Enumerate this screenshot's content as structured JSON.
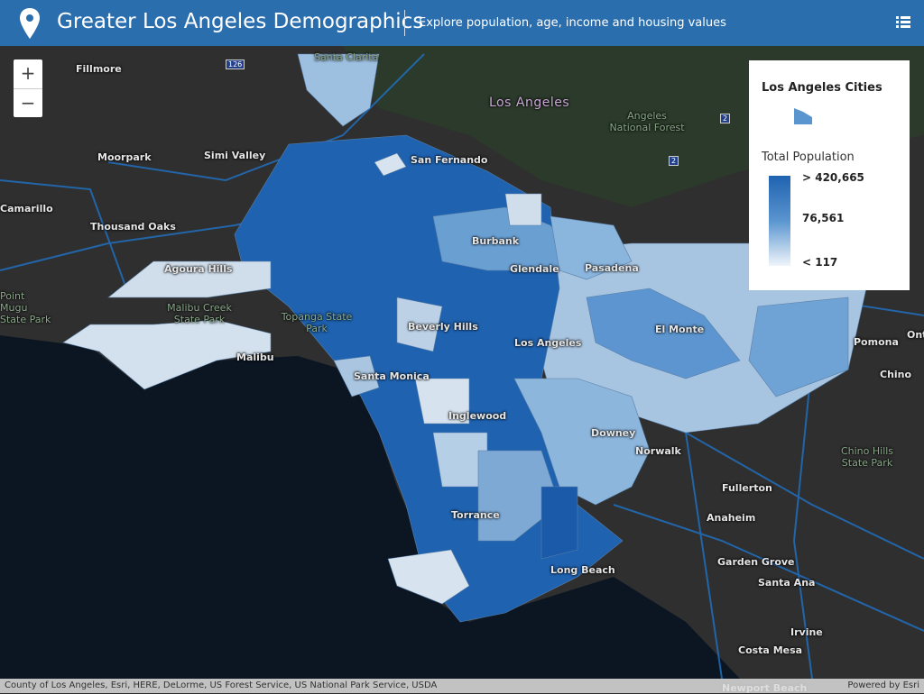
{
  "header": {
    "title": "Greater Los Angeles Demographics",
    "subtitle": "Explore population, age, income and housing values"
  },
  "zoom": {
    "in": "+",
    "out": "−"
  },
  "legend": {
    "layer": "Los Angeles Cities",
    "field": "Total Population",
    "stops": [
      "> 420,665",
      "76,561",
      "< 117"
    ]
  },
  "shields": [
    "126",
    "2",
    "2"
  ],
  "map_labels": [
    "Fillmore",
    "Santa Clarita",
    "Los Angeles",
    "Angeles National Forest",
    "Moorpark",
    "Simi Valley",
    "San Fernando",
    "Camarillo",
    "Thousand Oaks",
    "Burbank",
    "Glendale",
    "Pasadena",
    "Agoura Hills",
    "Point Mugu State Park",
    "Malibu Creek State Park",
    "Topanga State Park",
    "Beverly Hills",
    "Los Angeles",
    "El Monte",
    "Pomona",
    "Ont",
    "Chino",
    "Santa Monica",
    "Malibu",
    "Inglewood",
    "Downey",
    "Norwalk",
    "Chino Hills State Park",
    "Fullerton",
    "Anaheim",
    "Torrance",
    "Long Beach",
    "Garden Grove",
    "Santa Ana",
    "Irvine",
    "Costa Mesa",
    "Newport Beach"
  ],
  "attribution": "County of Los Angeles, Esri, HERE, DeLorme, US Forest Service, US National Park Service, USDA",
  "powered_by": {
    "text": "Powered by",
    "link": "Esri"
  }
}
